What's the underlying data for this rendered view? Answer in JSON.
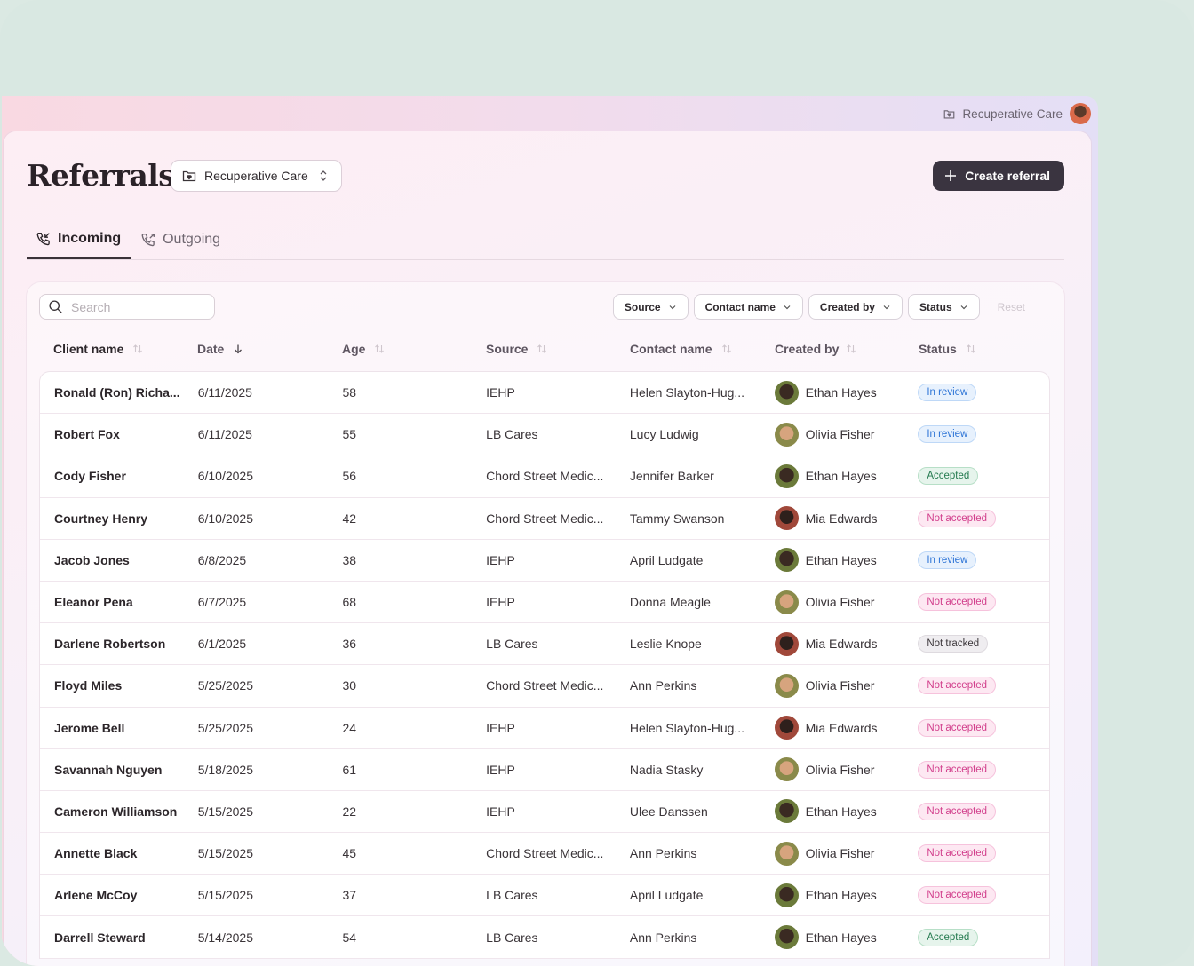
{
  "topbar": {
    "workspace": "Recuperative Care"
  },
  "header": {
    "title": "Referrals",
    "program_selector": "Recuperative Care",
    "create_button": "Create referral"
  },
  "tabs": [
    {
      "label": "Incoming",
      "active": true
    },
    {
      "label": "Outgoing",
      "active": false
    }
  ],
  "toolbar": {
    "search_placeholder": "Search",
    "filters": [
      "Source",
      "Contact name",
      "Created by",
      "Status"
    ],
    "reset": "Reset"
  },
  "columns": [
    "Client name",
    "Date",
    "Age",
    "Source",
    "Contact name",
    "Created by",
    "Status"
  ],
  "sort": {
    "column": "Date",
    "direction": "desc"
  },
  "status_colors": {
    "In review": "#2d74d6",
    "Accepted": "#247a4f",
    "Not accepted": "#d23f8c",
    "Not tracked": "#3c373b"
  },
  "rows": [
    {
      "client": "Ronald (Ron) Richa...",
      "date": "6/11/2025",
      "age": "58",
      "source": "IEHP",
      "contact": "Helen Slayton-Hug...",
      "created_by": "Ethan Hayes",
      "status": "In review"
    },
    {
      "client": "Robert Fox",
      "date": "6/11/2025",
      "age": "55",
      "source": "LB Cares",
      "contact": "Lucy Ludwig",
      "created_by": "Olivia Fisher",
      "status": "In review"
    },
    {
      "client": "Cody Fisher",
      "date": "6/10/2025",
      "age": "56",
      "source": "Chord Street Medic...",
      "contact": "Jennifer Barker",
      "created_by": "Ethan Hayes",
      "status": "Accepted"
    },
    {
      "client": "Courtney Henry",
      "date": "6/10/2025",
      "age": "42",
      "source": "Chord Street Medic...",
      "contact": "Tammy Swanson",
      "created_by": "Mia Edwards",
      "status": "Not accepted"
    },
    {
      "client": "Jacob Jones",
      "date": "6/8/2025",
      "age": "38",
      "source": "IEHP",
      "contact": "April Ludgate",
      "created_by": "Ethan Hayes",
      "status": "In review"
    },
    {
      "client": "Eleanor Pena",
      "date": "6/7/2025",
      "age": "68",
      "source": "IEHP",
      "contact": "Donna Meagle",
      "created_by": "Olivia Fisher",
      "status": "Not accepted"
    },
    {
      "client": "Darlene Robertson",
      "date": "6/1/2025",
      "age": "36",
      "source": "LB Cares",
      "contact": "Leslie Knope",
      "created_by": "Mia Edwards",
      "status": "Not tracked"
    },
    {
      "client": "Floyd Miles",
      "date": "5/25/2025",
      "age": "30",
      "source": "Chord Street Medic...",
      "contact": "Ann Perkins",
      "created_by": "Olivia Fisher",
      "status": "Not accepted"
    },
    {
      "client": "Jerome Bell",
      "date": "5/25/2025",
      "age": "24",
      "source": "IEHP",
      "contact": "Helen Slayton-Hug...",
      "created_by": "Mia Edwards",
      "status": "Not accepted"
    },
    {
      "client": "Savannah Nguyen",
      "date": "5/18/2025",
      "age": "61",
      "source": "IEHP",
      "contact": "Nadia Stasky",
      "created_by": "Olivia Fisher",
      "status": "Not accepted"
    },
    {
      "client": "Cameron Williamson",
      "date": "5/15/2025",
      "age": "22",
      "source": "IEHP",
      "contact": "Ulee Danssen",
      "created_by": "Ethan Hayes",
      "status": "Not accepted"
    },
    {
      "client": "Annette Black",
      "date": "5/15/2025",
      "age": "45",
      "source": "Chord Street Medic...",
      "contact": "Ann Perkins",
      "created_by": "Olivia Fisher",
      "status": "Not accepted"
    },
    {
      "client": "Arlene McCoy",
      "date": "5/15/2025",
      "age": "37",
      "source": "LB Cares",
      "contact": "April Ludgate",
      "created_by": "Ethan Hayes",
      "status": "Not accepted"
    },
    {
      "client": "Darrell Steward",
      "date": "5/14/2025",
      "age": "54",
      "source": "LB Cares",
      "contact": "Ann Perkins",
      "created_by": "Ethan Hayes",
      "status": "Accepted"
    }
  ]
}
